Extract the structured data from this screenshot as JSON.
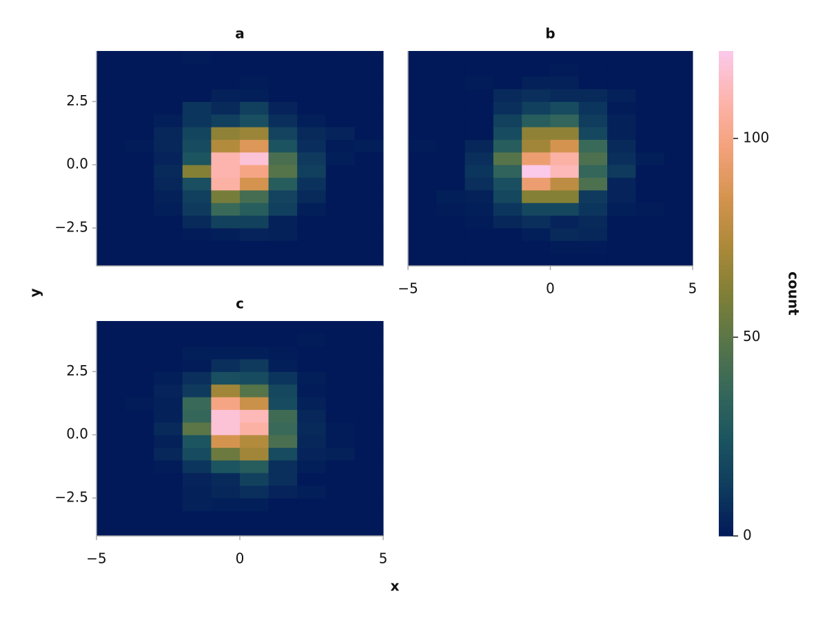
{
  "chart_data": {
    "type": "heatmap",
    "xlabel": "x",
    "ylabel": "y",
    "xlim": [
      -5,
      5
    ],
    "ylim": [
      -4,
      4.5
    ],
    "xticks": [
      {
        "value": -5,
        "label": "−5"
      },
      0,
      5
    ],
    "yticks": [
      {
        "value": -2.5,
        "label": "−2.5"
      },
      {
        "value": 0,
        "label": "0.0"
      },
      2.5
    ],
    "xbins": [
      -5,
      -4,
      -3,
      -2,
      -1,
      0,
      1,
      2,
      3,
      4,
      5
    ],
    "ybins": [
      -4,
      -3.5,
      -3,
      -2.5,
      -2,
      -1.5,
      -1,
      -0.5,
      0,
      0.5,
      1,
      1.5,
      2,
      2.5,
      3,
      3.5,
      4,
      4.5
    ],
    "colormap": "batlow",
    "colorbar": {
      "label": "count",
      "clim": [
        0,
        122
      ],
      "ticks": [
        0,
        50,
        100
      ]
    },
    "panels": [
      {
        "title": "a",
        "counts": [
          [
            0,
            0,
            0,
            0,
            0,
            0,
            0,
            0,
            0,
            0
          ],
          [
            0,
            0,
            0,
            0,
            0,
            0,
            0,
            0,
            0,
            0
          ],
          [
            0,
            0,
            0,
            1,
            2,
            4,
            3,
            0,
            0,
            0
          ],
          [
            0,
            0,
            0,
            6,
            15,
            15,
            3,
            0,
            0,
            0
          ],
          [
            0,
            0,
            2,
            12,
            38,
            30,
            14,
            2,
            0,
            0
          ],
          [
            0,
            0,
            3,
            14,
            58,
            42,
            16,
            6,
            0,
            0
          ],
          [
            0,
            0,
            5,
            22,
            108,
            85,
            30,
            9,
            0,
            0
          ],
          [
            0,
            0,
            6,
            62,
            110,
            100,
            48,
            14,
            0,
            0
          ],
          [
            0,
            0,
            4,
            25,
            110,
            118,
            44,
            12,
            2,
            0
          ],
          [
            0,
            1,
            5,
            20,
            75,
            88,
            24,
            7,
            1,
            2
          ],
          [
            0,
            0,
            5,
            17,
            65,
            68,
            16,
            6,
            4,
            0
          ],
          [
            0,
            0,
            2,
            10,
            14,
            22,
            8,
            2,
            0,
            0
          ],
          [
            0,
            0,
            0,
            10,
            6,
            14,
            4,
            0,
            0,
            0
          ],
          [
            0,
            0,
            0,
            0,
            3,
            2,
            0,
            0,
            0,
            0
          ],
          [
            0,
            0,
            0,
            0,
            0,
            1,
            0,
            0,
            0,
            0
          ],
          [
            0,
            0,
            0,
            0,
            0,
            0,
            0,
            0,
            0,
            0
          ],
          [
            0,
            0,
            0,
            1,
            0,
            0,
            0,
            0,
            0,
            0
          ]
        ]
      },
      {
        "title": "b",
        "counts": [
          [
            0,
            0,
            0,
            0,
            0,
            0,
            0,
            0,
            0,
            0
          ],
          [
            0,
            0,
            0,
            0,
            0,
            1,
            1,
            0,
            0,
            0
          ],
          [
            0,
            0,
            0,
            0,
            2,
            6,
            5,
            0,
            0,
            0
          ],
          [
            0,
            0,
            1,
            5,
            8,
            4,
            6,
            0,
            0,
            0
          ],
          [
            0,
            1,
            2,
            10,
            18,
            18,
            10,
            2,
            1,
            0
          ],
          [
            0,
            2,
            3,
            18,
            62,
            62,
            12,
            4,
            0,
            0
          ],
          [
            0,
            0,
            8,
            22,
            95,
            78,
            45,
            4,
            0,
            0
          ],
          [
            0,
            0,
            10,
            34,
            122,
            112,
            36,
            12,
            0,
            0
          ],
          [
            0,
            0,
            8,
            48,
            95,
            108,
            45,
            8,
            2,
            0
          ],
          [
            1,
            0,
            5,
            30,
            70,
            85,
            38,
            6,
            0,
            0
          ],
          [
            0,
            0,
            0,
            20,
            65,
            65,
            18,
            3,
            0,
            0
          ],
          [
            0,
            0,
            0,
            15,
            30,
            35,
            13,
            3,
            0,
            0
          ],
          [
            0,
            0,
            0,
            8,
            14,
            20,
            10,
            1,
            0,
            0
          ],
          [
            0,
            0,
            0,
            6,
            8,
            6,
            6,
            3,
            0,
            0
          ],
          [
            0,
            0,
            1,
            0,
            3,
            3,
            0,
            0,
            0,
            0
          ],
          [
            0,
            0,
            0,
            0,
            0,
            1,
            0,
            0,
            0,
            0
          ],
          [
            0,
            0,
            0,
            0,
            0,
            0,
            0,
            0,
            0,
            0
          ]
        ]
      },
      {
        "title": "c",
        "counts": [
          [
            0,
            0,
            0,
            0,
            0,
            0,
            0,
            0,
            0,
            0
          ],
          [
            0,
            0,
            0,
            0,
            0,
            0,
            0,
            0,
            0,
            0
          ],
          [
            0,
            0,
            0,
            3,
            2,
            2,
            0,
            0,
            0,
            0
          ],
          [
            0,
            0,
            0,
            3,
            5,
            8,
            4,
            2,
            0,
            0
          ],
          [
            0,
            0,
            0,
            4,
            6,
            15,
            8,
            0,
            0,
            0
          ],
          [
            0,
            0,
            1,
            10,
            25,
            30,
            8,
            2,
            0,
            0
          ],
          [
            0,
            0,
            5,
            20,
            55,
            70,
            20,
            4,
            3,
            0
          ],
          [
            0,
            0,
            3,
            25,
            85,
            75,
            44,
            5,
            1,
            0
          ],
          [
            0,
            0,
            6,
            50,
            118,
            108,
            38,
            6,
            1,
            0
          ],
          [
            0,
            0,
            3,
            36,
            118,
            112,
            40,
            5,
            0,
            0
          ],
          [
            0,
            1,
            3,
            38,
            100,
            82,
            20,
            3,
            0,
            0
          ],
          [
            0,
            0,
            4,
            12,
            70,
            48,
            18,
            1,
            0,
            0
          ],
          [
            0,
            0,
            2,
            8,
            22,
            20,
            10,
            2,
            0,
            0
          ],
          [
            0,
            0,
            0,
            1,
            8,
            12,
            2,
            0,
            0,
            0
          ],
          [
            0,
            0,
            0,
            2,
            2,
            2,
            1,
            0,
            0,
            0
          ],
          [
            0,
            0,
            0,
            0,
            0,
            0,
            0,
            1,
            0,
            0
          ],
          [
            0,
            0,
            0,
            0,
            0,
            0,
            0,
            0,
            0,
            0
          ]
        ]
      }
    ]
  }
}
